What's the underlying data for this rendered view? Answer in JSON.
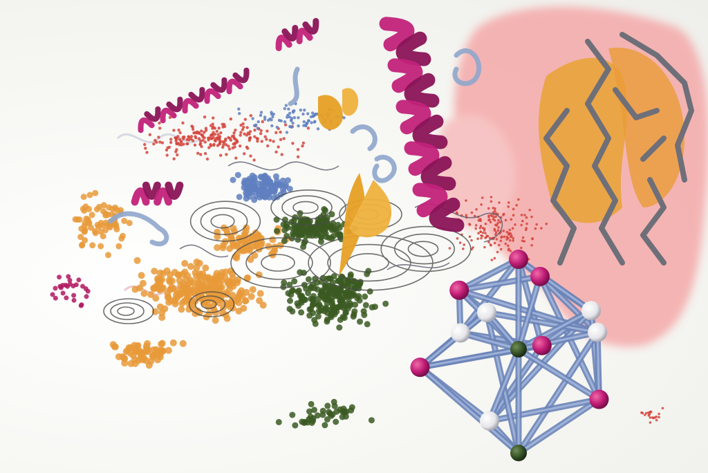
{
  "image": {
    "kind": "scientific-illustration",
    "text": []
  },
  "palette": {
    "helix": "#c2227a",
    "helix_light": "#9fb0c8",
    "strand": "#e7a126",
    "cloud": "#f4a9a9",
    "orange_dots": "#e79a3a",
    "green_dots": "#3b5a22",
    "red_dots": "#d3443c",
    "blue_dots": "#5f7fbf",
    "contour": "#4b4b4b",
    "cage_bond": "#6b84b8",
    "cage_atom_magenta": "#c01d76",
    "cage_atom_white": "#f2f2f2",
    "cage_atom_green": "#2f4a23",
    "stick": "#6e6f78"
  },
  "icons": [
    "cage-cluster",
    "protein-helix",
    "beta-sheet",
    "point-cloud",
    "contour-map"
  ]
}
